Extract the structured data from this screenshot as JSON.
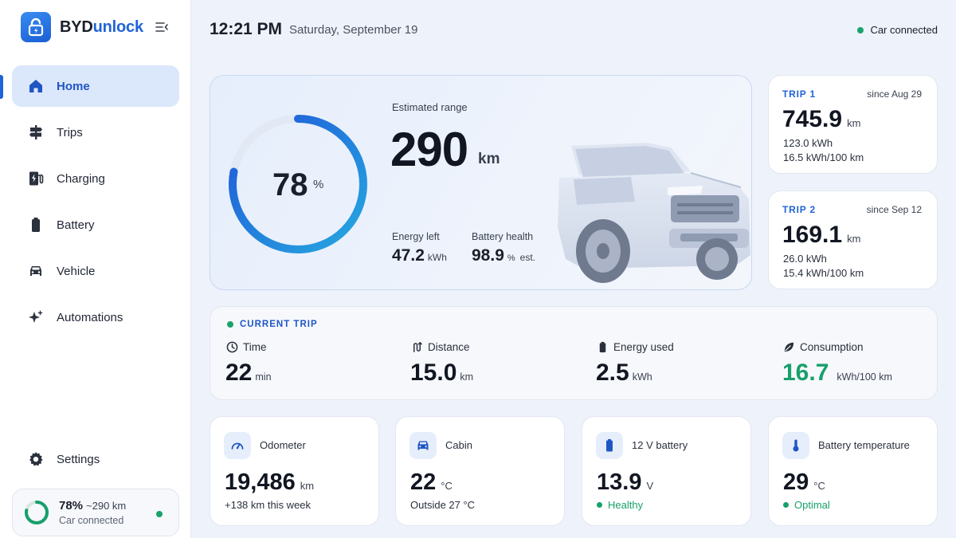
{
  "brand": {
    "name_main": "BYD",
    "name_accent": "unlock",
    "accent_color": "#1f63d6"
  },
  "sidebar": {
    "items": [
      {
        "label": "Home",
        "icon": "home-icon",
        "active": true
      },
      {
        "label": "Trips",
        "icon": "signpost-icon"
      },
      {
        "label": "Charging",
        "icon": "charging-station-icon"
      },
      {
        "label": "Battery",
        "icon": "battery-icon"
      },
      {
        "label": "Vehicle",
        "icon": "car-icon"
      },
      {
        "label": "Automations",
        "icon": "sparkles-icon"
      }
    ],
    "settings_label": "Settings",
    "status": {
      "percent": "78%",
      "range": "~290 km",
      "text": "Car connected",
      "level": 0.78
    }
  },
  "header": {
    "time": "12:21 PM",
    "date": "Saturday, September 19",
    "connection": "Car connected",
    "status_color": "#18a36a"
  },
  "hero": {
    "soc_value": "78",
    "soc_unit": "%",
    "soc_level": 0.78,
    "range_label": "Estimated range",
    "range_value": "290",
    "range_unit": "km",
    "energy_left_label": "Energy left",
    "energy_left_value": "47.2",
    "energy_left_unit": "kWh",
    "battery_health_label": "Battery health",
    "battery_health_value": "98.9",
    "battery_health_unit": "%",
    "battery_health_note": "est."
  },
  "trips": [
    {
      "label": "TRIP 1",
      "since": "since Aug 29",
      "distance": "745.9",
      "unit": "km",
      "energy": "123.0 kWh",
      "consumption": "16.5 kWh/100 km"
    },
    {
      "label": "TRIP 2",
      "since": "since Sep 12",
      "distance": "169.1",
      "unit": "km",
      "energy": "26.0 kWh",
      "consumption": "15.4 kWh/100 km"
    }
  ],
  "current_trip": {
    "title": "CURRENT TRIP",
    "metrics": [
      {
        "label": "Time",
        "value": "22",
        "unit": "min",
        "icon": "clock-icon"
      },
      {
        "label": "Distance",
        "value": "15.0",
        "unit": "km",
        "icon": "route-icon"
      },
      {
        "label": "Energy used",
        "value": "2.5",
        "unit": "kWh",
        "icon": "battery-small-icon"
      },
      {
        "label": "Consumption",
        "value": "16.7",
        "unit": "kWh/100 km",
        "icon": "leaf-icon"
      }
    ]
  },
  "cards": [
    {
      "label": "Odometer",
      "value": "19,486",
      "unit": "km",
      "sub": "+138 km this week",
      "icon": "speedometer-icon"
    },
    {
      "label": "Cabin",
      "value": "22",
      "unit": "°C",
      "sub": "Outside 27 °C",
      "icon": "car-front-icon"
    },
    {
      "label": "12 V battery",
      "value": "13.9",
      "unit": "V",
      "sub": "Healthy",
      "icon": "battery-icon"
    },
    {
      "label": "Battery temperature",
      "value": "29",
      "unit": "°C",
      "sub": "Optimal",
      "icon": "thermometer-icon"
    }
  ]
}
